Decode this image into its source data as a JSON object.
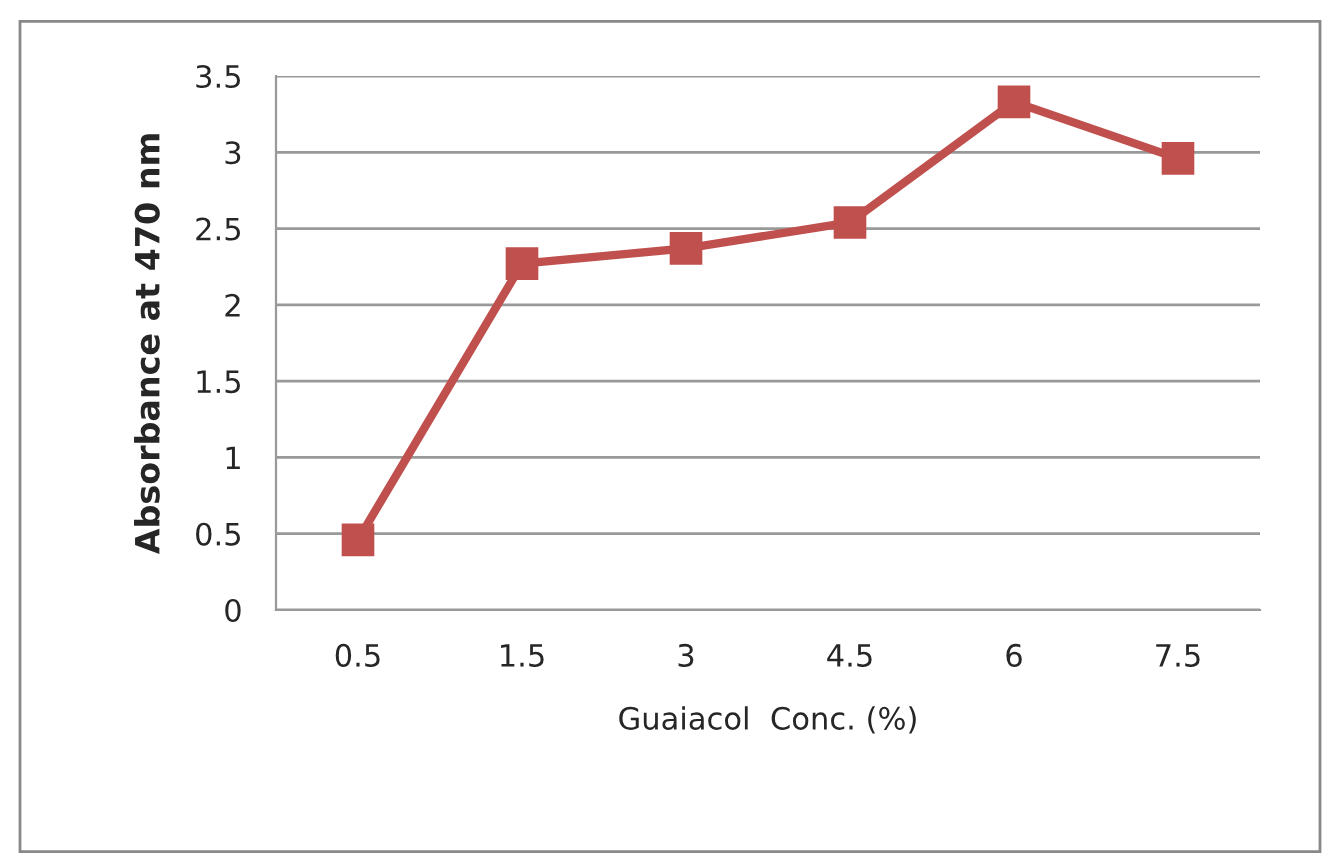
{
  "chart_data": {
    "type": "line",
    "xlabel": "Guaiacol  Conc. (%)",
    "ylabel": "Absorbance at 470 nm",
    "categories": [
      "0.5",
      "1.5",
      "3",
      "4.5",
      "6",
      "7.5"
    ],
    "series": [
      {
        "color": "#c0504d",
        "values": [
          0.46,
          2.27,
          2.37,
          2.54,
          3.33,
          2.96
        ]
      }
    ],
    "ylim": [
      0,
      3.5
    ],
    "yticks": [
      0,
      0.5,
      1,
      1.5,
      2,
      2.5,
      3,
      3.5
    ],
    "grid": "y",
    "marker": "square",
    "line_style": "solid",
    "legend": false
  }
}
